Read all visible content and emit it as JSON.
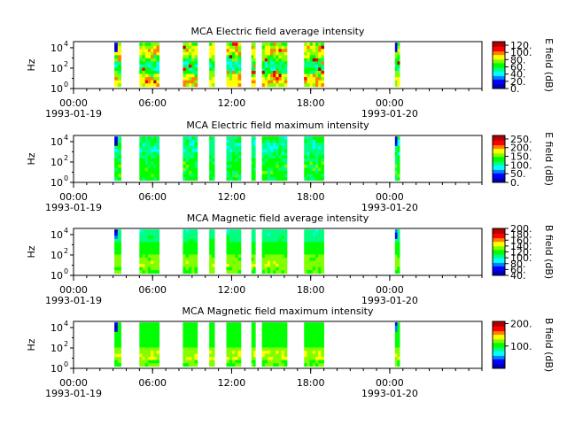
{
  "colors": {
    "spectral_scale": [
      "#0000b0",
      "#0000ff",
      "#0080ff",
      "#00ffff",
      "#00ff80",
      "#00ff00",
      "#80ff00",
      "#ffff00",
      "#ff8000",
      "#ff0000",
      "#b00000"
    ],
    "frame": "#000000",
    "background": "#ffffff"
  },
  "chart_data": [
    {
      "type": "heatmap",
      "title": "MCA  Electric field average intensity",
      "ylabel": "Hz",
      "y_scale": "log",
      "y_ticks": [
        {
          "value": 1,
          "base": "10",
          "exp": "0"
        },
        {
          "value": 100,
          "base": "10",
          "exp": "2"
        },
        {
          "value": 10000,
          "base": "10",
          "exp": "4"
        }
      ],
      "ylim": [
        1,
        40000
      ],
      "x_range_hours": [
        0,
        31
      ],
      "x_ticks": [
        {
          "hour": 0,
          "time": "00:00",
          "date": "1993-01-19"
        },
        {
          "hour": 6,
          "time": "06:00",
          "date": ""
        },
        {
          "hour": 12,
          "time": "12:00",
          "date": ""
        },
        {
          "hour": 18,
          "time": "18:00",
          "date": ""
        },
        {
          "hour": 24,
          "time": "00:00",
          "date": "1993-01-20"
        }
      ],
      "colorbar": {
        "label": "E field (dB)",
        "range": [
          0,
          130
        ],
        "ticks": [
          "0.",
          "20.",
          "40.",
          "60.",
          "80.",
          "100.",
          "120."
        ]
      },
      "segments_hours": [
        [
          3.1,
          3.6
        ],
        [
          5.0,
          6.5
        ],
        [
          8.3,
          9.4
        ],
        [
          10.3,
          10.7
        ],
        [
          11.6,
          12.7
        ],
        [
          13.5,
          13.8
        ],
        [
          14.3,
          16.2
        ],
        [
          17.5,
          19.0
        ],
        [
          24.4,
          24.75
        ]
      ]
    },
    {
      "type": "heatmap",
      "title": "MCA  Electric field maximum intensity",
      "ylabel": "Hz",
      "y_scale": "log",
      "y_ticks": [
        {
          "value": 1,
          "base": "10",
          "exp": "0"
        },
        {
          "value": 100,
          "base": "10",
          "exp": "2"
        },
        {
          "value": 10000,
          "base": "10",
          "exp": "4"
        }
      ],
      "ylim": [
        1,
        40000
      ],
      "x_range_hours": [
        0,
        31
      ],
      "x_ticks": [
        {
          "hour": 0,
          "time": "00:00",
          "date": "1993-01-19"
        },
        {
          "hour": 6,
          "time": "06:00",
          "date": ""
        },
        {
          "hour": 12,
          "time": "12:00",
          "date": ""
        },
        {
          "hour": 18,
          "time": "18:00",
          "date": ""
        },
        {
          "hour": 24,
          "time": "00:00",
          "date": "1993-01-20"
        }
      ],
      "colorbar": {
        "label": "E field (dB)",
        "range": [
          0,
          270
        ],
        "ticks": [
          "0.",
          "50.",
          "100.",
          "150.",
          "200.",
          "250."
        ]
      },
      "segments_hours": [
        [
          3.1,
          3.6
        ],
        [
          5.0,
          6.5
        ],
        [
          8.3,
          9.4
        ],
        [
          10.3,
          10.7
        ],
        [
          11.6,
          12.7
        ],
        [
          13.5,
          13.8
        ],
        [
          14.3,
          16.2
        ],
        [
          17.5,
          19.0
        ],
        [
          24.4,
          24.75
        ]
      ]
    },
    {
      "type": "heatmap",
      "title": "MCA  Magnetic field average intensity",
      "ylabel": "Hz",
      "y_scale": "log",
      "y_ticks": [
        {
          "value": 1,
          "base": "10",
          "exp": "0"
        },
        {
          "value": 100,
          "base": "10",
          "exp": "2"
        },
        {
          "value": 10000,
          "base": "10",
          "exp": "4"
        }
      ],
      "ylim": [
        1,
        40000
      ],
      "x_range_hours": [
        0,
        31
      ],
      "x_ticks": [
        {
          "hour": 0,
          "time": "00:00",
          "date": "1993-01-19"
        },
        {
          "hour": 6,
          "time": "06:00",
          "date": ""
        },
        {
          "hour": 12,
          "time": "12:00",
          "date": ""
        },
        {
          "hour": 18,
          "time": "18:00",
          "date": ""
        },
        {
          "hour": 24,
          "time": "00:00",
          "date": "1993-01-20"
        }
      ],
      "colorbar": {
        "label": "B field (dB)",
        "range": [
          40,
          200
        ],
        "ticks": [
          "40.",
          "60.",
          "80.",
          "100.",
          "120.",
          "140.",
          "160.",
          "180.",
          "200."
        ]
      },
      "segments_hours": [
        [
          3.1,
          3.6
        ],
        [
          5.0,
          6.5
        ],
        [
          8.3,
          9.4
        ],
        [
          10.3,
          10.7
        ],
        [
          11.6,
          12.7
        ],
        [
          13.5,
          13.8
        ],
        [
          14.3,
          16.2
        ],
        [
          17.5,
          19.0
        ],
        [
          24.4,
          24.75
        ]
      ]
    },
    {
      "type": "heatmap",
      "title": "MCA  Magnetic field maximum intensity",
      "ylabel": "Hz",
      "y_scale": "log",
      "y_ticks": [
        {
          "value": 1,
          "base": "10",
          "exp": "0"
        },
        {
          "value": 100,
          "base": "10",
          "exp": "2"
        },
        {
          "value": 10000,
          "base": "10",
          "exp": "4"
        }
      ],
      "ylim": [
        1,
        40000
      ],
      "x_range_hours": [
        0,
        31
      ],
      "x_ticks": [
        {
          "hour": 0,
          "time": "00:00",
          "date": "1993-01-19"
        },
        {
          "hour": 6,
          "time": "06:00",
          "date": ""
        },
        {
          "hour": 12,
          "time": "12:00",
          "date": ""
        },
        {
          "hour": 18,
          "time": "18:00",
          "date": ""
        },
        {
          "hour": 24,
          "time": "00:00",
          "date": "1993-01-20"
        }
      ],
      "colorbar": {
        "label": "B field (dB)",
        "range": [
          0,
          210
        ],
        "ticks": [
          "100.",
          "200."
        ]
      },
      "segments_hours": [
        [
          3.1,
          3.6
        ],
        [
          5.0,
          6.5
        ],
        [
          8.3,
          9.4
        ],
        [
          10.3,
          10.7
        ],
        [
          11.6,
          12.7
        ],
        [
          13.5,
          13.8
        ],
        [
          14.3,
          16.2
        ],
        [
          17.5,
          19.0
        ],
        [
          24.4,
          24.75
        ]
      ]
    }
  ]
}
